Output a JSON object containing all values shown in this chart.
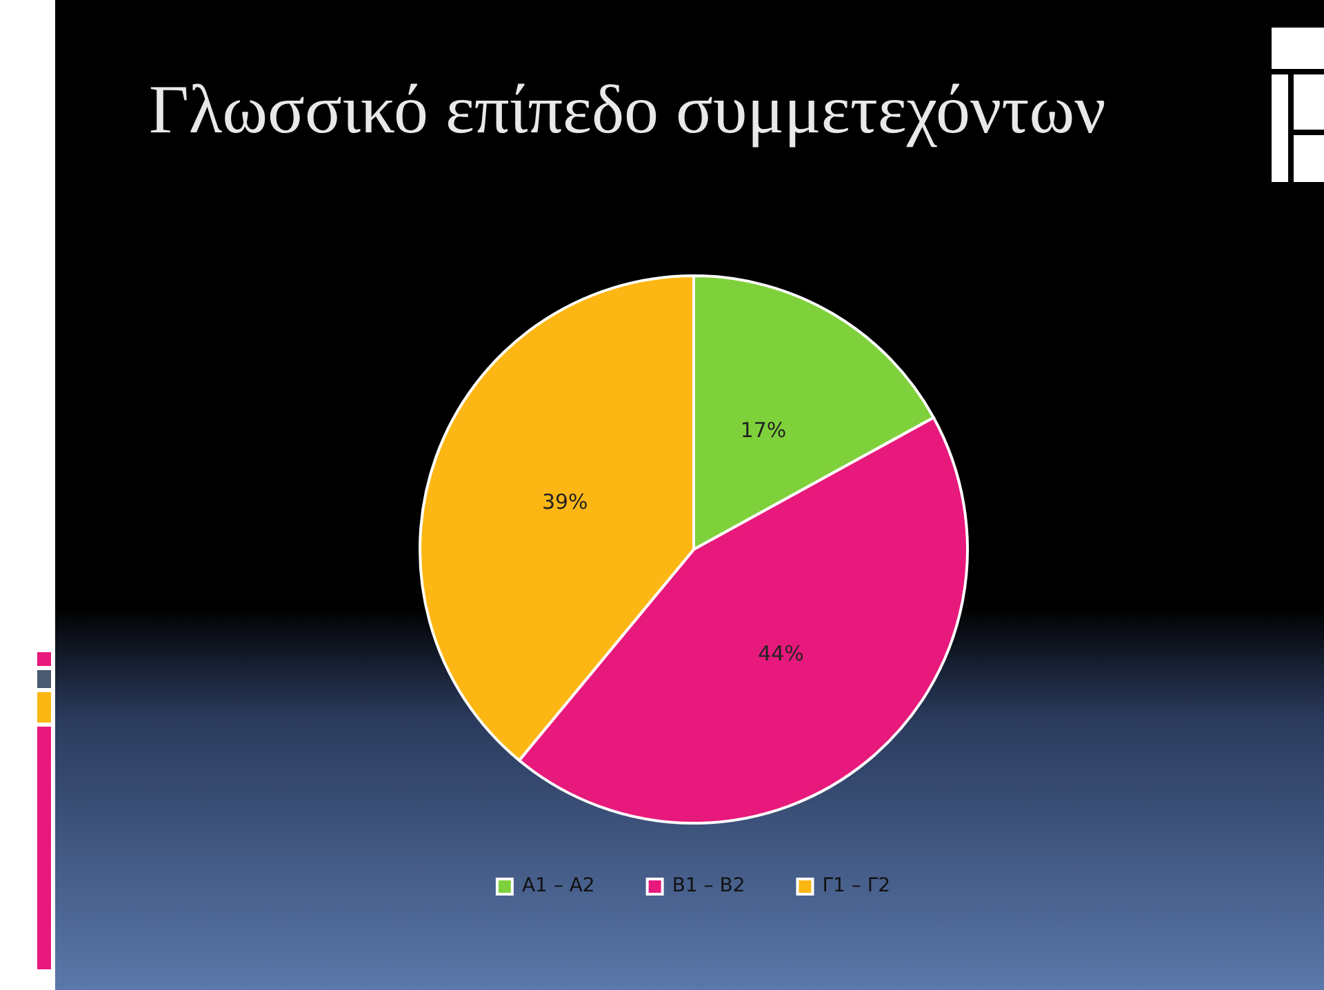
{
  "chart_data": {
    "type": "pie",
    "title": "Γλωσσικό επίπεδο συμμετεχόντων",
    "categories": [
      "Α1 – Α2",
      "Β1 – Β2",
      "Γ1 – Γ2"
    ],
    "values": [
      17,
      44,
      39
    ],
    "colors": [
      "#7fd13b",
      "#e8197c",
      "#fdb714"
    ],
    "value_labels": [
      "17%",
      "44%",
      "39%"
    ],
    "legend": "bottom"
  }
}
